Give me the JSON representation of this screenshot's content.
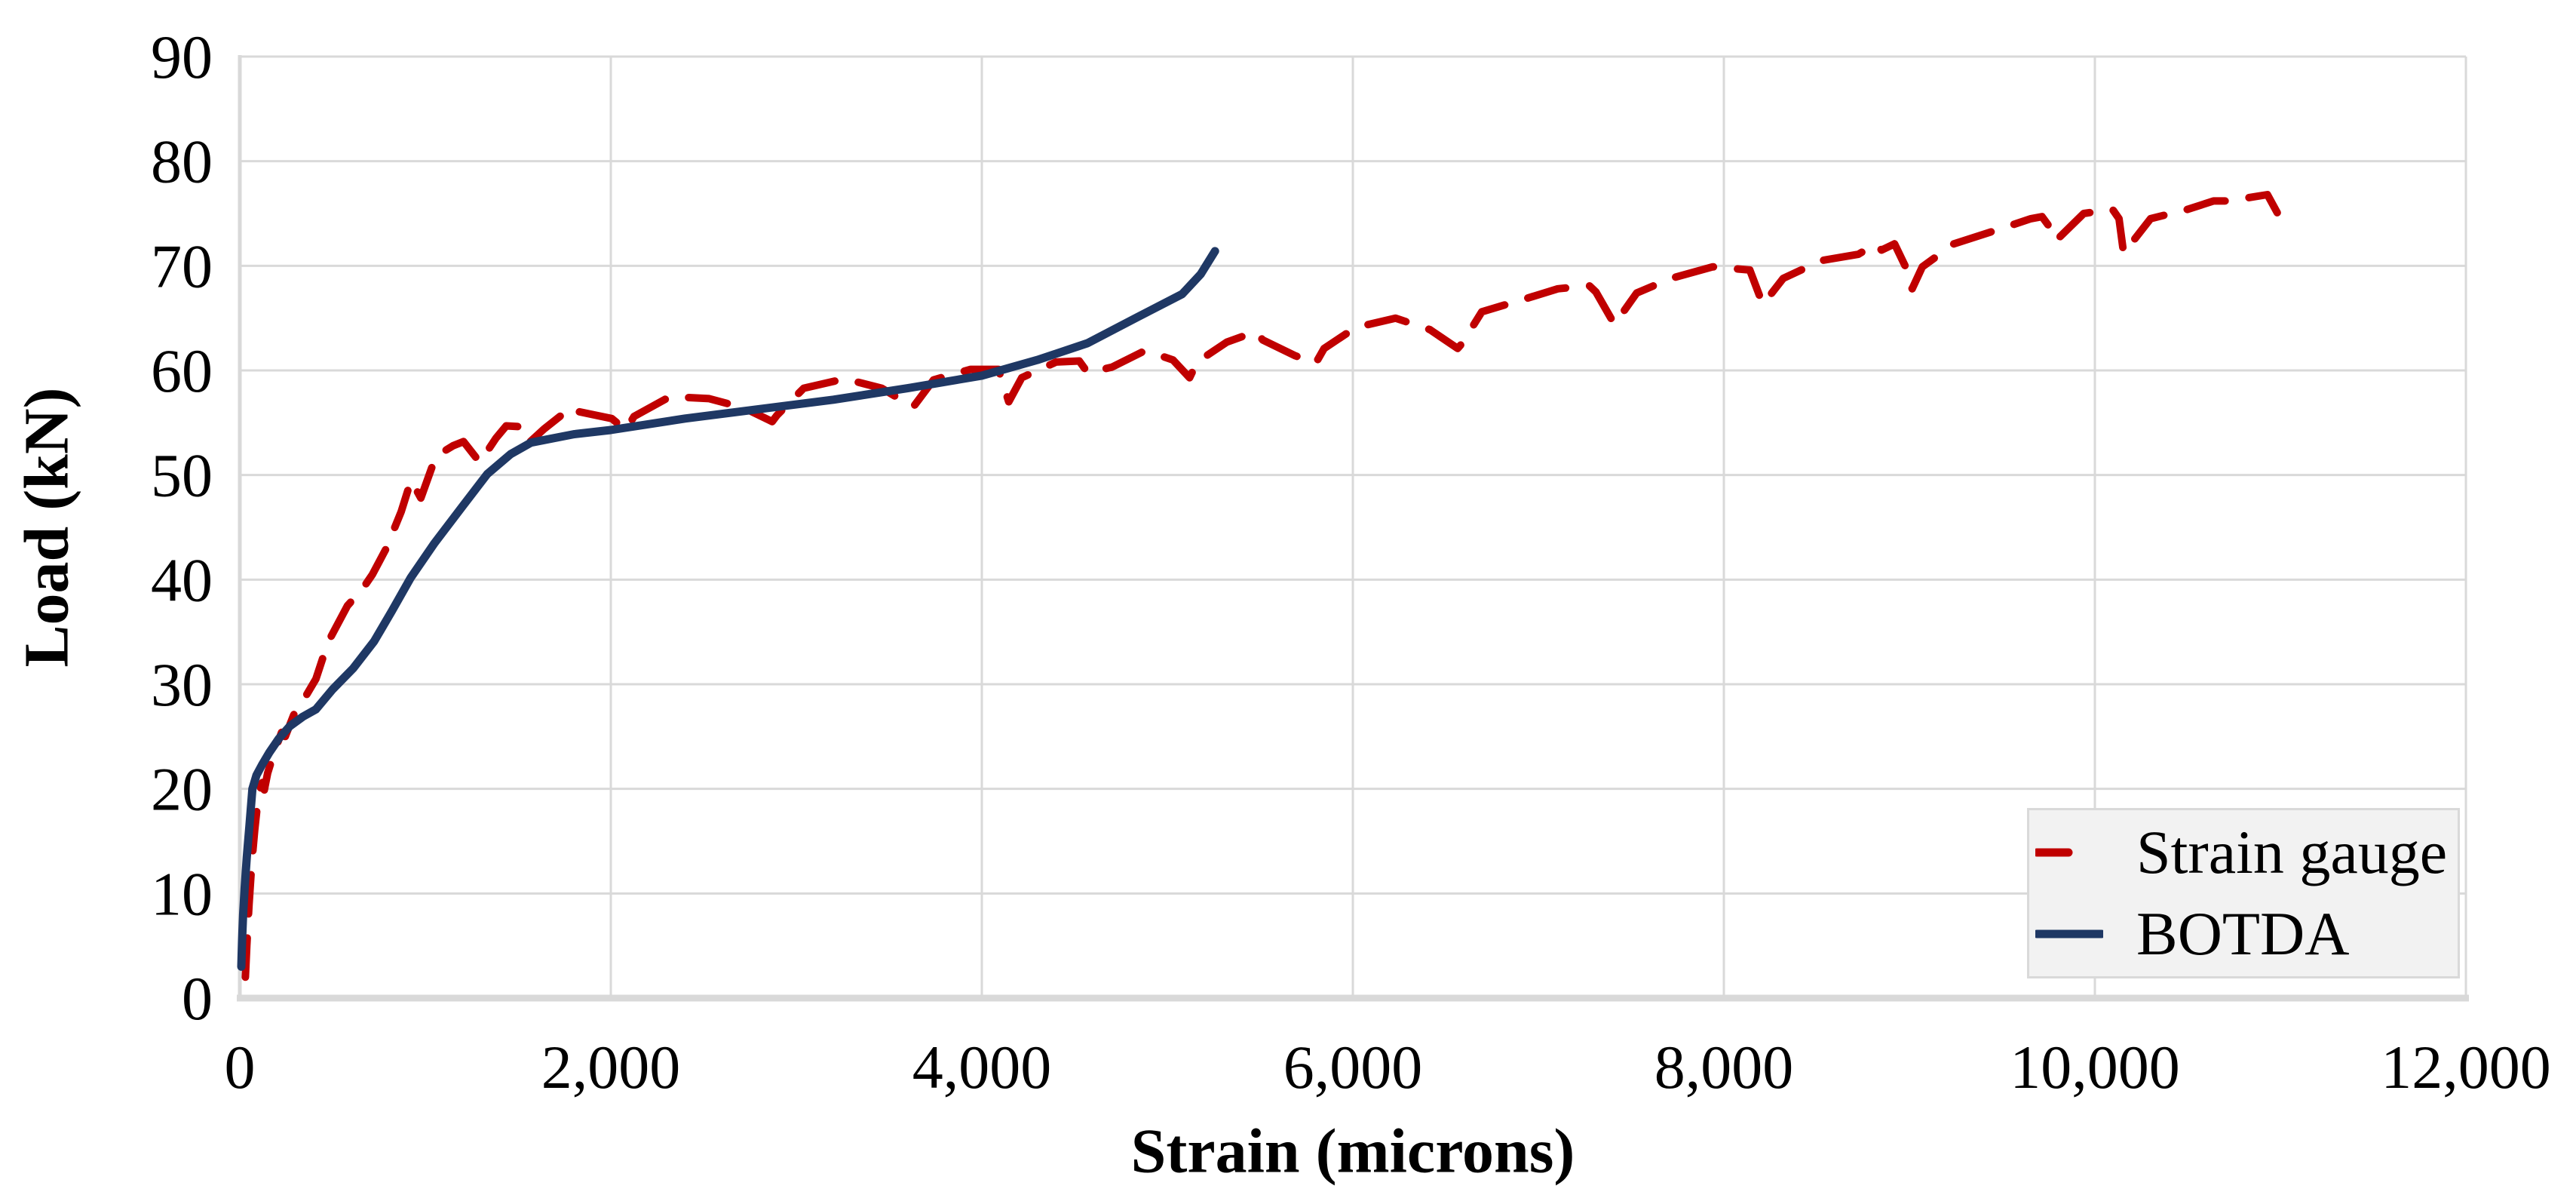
{
  "chart_data": {
    "type": "line",
    "title": "",
    "xlabel": "Strain (microns)",
    "ylabel": "Load (kN)",
    "xlim": [
      0,
      12000
    ],
    "ylim": [
      0,
      90
    ],
    "grid": true,
    "legend_position": "bottom-right",
    "xticks": {
      "values": [
        0,
        2000,
        4000,
        6000,
        8000,
        10000,
        12000
      ],
      "labels": [
        "0",
        "2,000",
        "4,000",
        "6,000",
        "8,000",
        "10,000",
        "12,000"
      ]
    },
    "yticks": {
      "values": [
        0,
        10,
        20,
        30,
        40,
        50,
        60,
        70,
        80,
        90
      ],
      "labels": [
        "0",
        "10",
        "20",
        "30",
        "40",
        "50",
        "60",
        "70",
        "80",
        "90"
      ]
    },
    "series": [
      {
        "name": "Strain gauge",
        "color": "#C00000",
        "dashed": true,
        "points": [
          [
            30,
            2
          ],
          [
            38,
            5
          ],
          [
            50,
            9
          ],
          [
            65,
            13
          ],
          [
            80,
            16
          ],
          [
            95,
            18.5
          ],
          [
            110,
            20
          ],
          [
            122,
            20.6
          ],
          [
            132,
            19.9
          ],
          [
            150,
            21.5
          ],
          [
            185,
            23.5
          ],
          [
            225,
            25.4
          ],
          [
            245,
            25
          ],
          [
            300,
            27.5
          ],
          [
            360,
            29
          ],
          [
            410,
            30.5
          ],
          [
            475,
            34
          ],
          [
            580,
            37.5
          ],
          [
            665,
            39.2
          ],
          [
            715,
            40.5
          ],
          [
            790,
            43
          ],
          [
            870,
            46.5
          ],
          [
            923,
            49.5
          ],
          [
            976,
            47.8
          ],
          [
            1057,
            51.8
          ],
          [
            1150,
            52.8
          ],
          [
            1206,
            53.2
          ],
          [
            1294,
            51.2
          ],
          [
            1380,
            53.5
          ],
          [
            1436,
            54.7
          ],
          [
            1530,
            54.6
          ],
          [
            1560,
            53.1
          ],
          [
            1640,
            54.4
          ],
          [
            1790,
            56.5
          ],
          [
            1815,
            56.1
          ],
          [
            2005,
            55.4
          ],
          [
            2080,
            54.3
          ],
          [
            2125,
            55.6
          ],
          [
            2320,
            57.5
          ],
          [
            2530,
            57.3
          ],
          [
            2720,
            56.4
          ],
          [
            2870,
            55.1
          ],
          [
            2895,
            55.7
          ],
          [
            3040,
            58.3
          ],
          [
            3260,
            59.2
          ],
          [
            3460,
            58.3
          ],
          [
            3630,
            56.5
          ],
          [
            3740,
            59.1
          ],
          [
            3940,
            60.1
          ],
          [
            4090,
            60.1
          ],
          [
            4145,
            57
          ],
          [
            4215,
            59.3
          ],
          [
            4400,
            60.8
          ],
          [
            4525,
            60.9
          ],
          [
            4570,
            59.8
          ],
          [
            4700,
            60.3
          ],
          [
            4880,
            61.9
          ],
          [
            5030,
            61
          ],
          [
            5120,
            59.3
          ],
          [
            5160,
            60.8
          ],
          [
            5320,
            62.7
          ],
          [
            5475,
            63.7
          ],
          [
            5515,
            62.9
          ],
          [
            5690,
            61.4
          ],
          [
            5800,
            60.7
          ],
          [
            5845,
            62.1
          ],
          [
            6015,
            64.1
          ],
          [
            6230,
            65
          ],
          [
            6415,
            63.9
          ],
          [
            6565,
            62.1
          ],
          [
            6590,
            62.6
          ],
          [
            6695,
            65.6
          ],
          [
            6940,
            66.9
          ],
          [
            7105,
            67.8
          ],
          [
            7275,
            68.1
          ],
          [
            7310,
            67.5
          ],
          [
            7410,
            64.4
          ],
          [
            7530,
            67.4
          ],
          [
            7715,
            68.8
          ],
          [
            7940,
            69.9
          ],
          [
            8140,
            69.6
          ],
          [
            8210,
            66.3
          ],
          [
            8320,
            68.8
          ],
          [
            8525,
            70.5
          ],
          [
            8725,
            71.1
          ],
          [
            8820,
            72.1
          ],
          [
            8850,
            71.5
          ],
          [
            8920,
            72.1
          ],
          [
            8985,
            69.7
          ],
          [
            9015,
            67.8
          ],
          [
            9070,
            69.9
          ],
          [
            9240,
            72.1
          ],
          [
            9450,
            73.3
          ],
          [
            9655,
            74.5
          ],
          [
            9715,
            74.7
          ],
          [
            9785,
            73
          ],
          [
            9790,
            72.4
          ],
          [
            9940,
            75
          ],
          [
            10095,
            75.4
          ],
          [
            10130,
            74.5
          ],
          [
            10155,
            71.2
          ],
          [
            10300,
            74.5
          ],
          [
            10500,
            75.4
          ],
          [
            10640,
            76.2
          ],
          [
            10720,
            76.2
          ],
          [
            10930,
            76.8
          ],
          [
            11025,
            73.7
          ]
        ]
      },
      {
        "name": "BOTDA",
        "color": "#1F3864",
        "dashed": false,
        "points": [
          [
            8,
            3
          ],
          [
            12,
            5.5
          ],
          [
            18,
            8
          ],
          [
            26,
            10.5
          ],
          [
            38,
            13.5
          ],
          [
            52,
            16.5
          ],
          [
            68,
            20
          ],
          [
            90,
            21.3
          ],
          [
            120,
            22.3
          ],
          [
            160,
            23.5
          ],
          [
            210,
            24.8
          ],
          [
            270,
            26
          ],
          [
            340,
            26.9
          ],
          [
            410,
            27.6
          ],
          [
            500,
            29.5
          ],
          [
            610,
            31.5
          ],
          [
            724,
            34.1
          ],
          [
            820,
            37
          ],
          [
            922,
            40.2
          ],
          [
            1050,
            43.5
          ],
          [
            1200,
            47
          ],
          [
            1334,
            50.1
          ],
          [
            1460,
            52
          ],
          [
            1570,
            53.1
          ],
          [
            1800,
            53.9
          ],
          [
            2000,
            54.3
          ],
          [
            2400,
            55.4
          ],
          [
            2800,
            56.3
          ],
          [
            3200,
            57.2
          ],
          [
            3600,
            58.3
          ],
          [
            4000,
            59.5
          ],
          [
            4300,
            61
          ],
          [
            4570,
            62.6
          ],
          [
            4840,
            65.1
          ],
          [
            5080,
            67.3
          ],
          [
            5180,
            69.2
          ],
          [
            5257,
            71.4
          ]
        ]
      }
    ],
    "colors": {
      "background": "#FFFFFF",
      "gridline": "#D9D9D9",
      "axis_line": "#D9D9D9",
      "legend_background": "#F2F2F2",
      "legend_border": "#D9D9D9",
      "text": "#000000"
    }
  }
}
